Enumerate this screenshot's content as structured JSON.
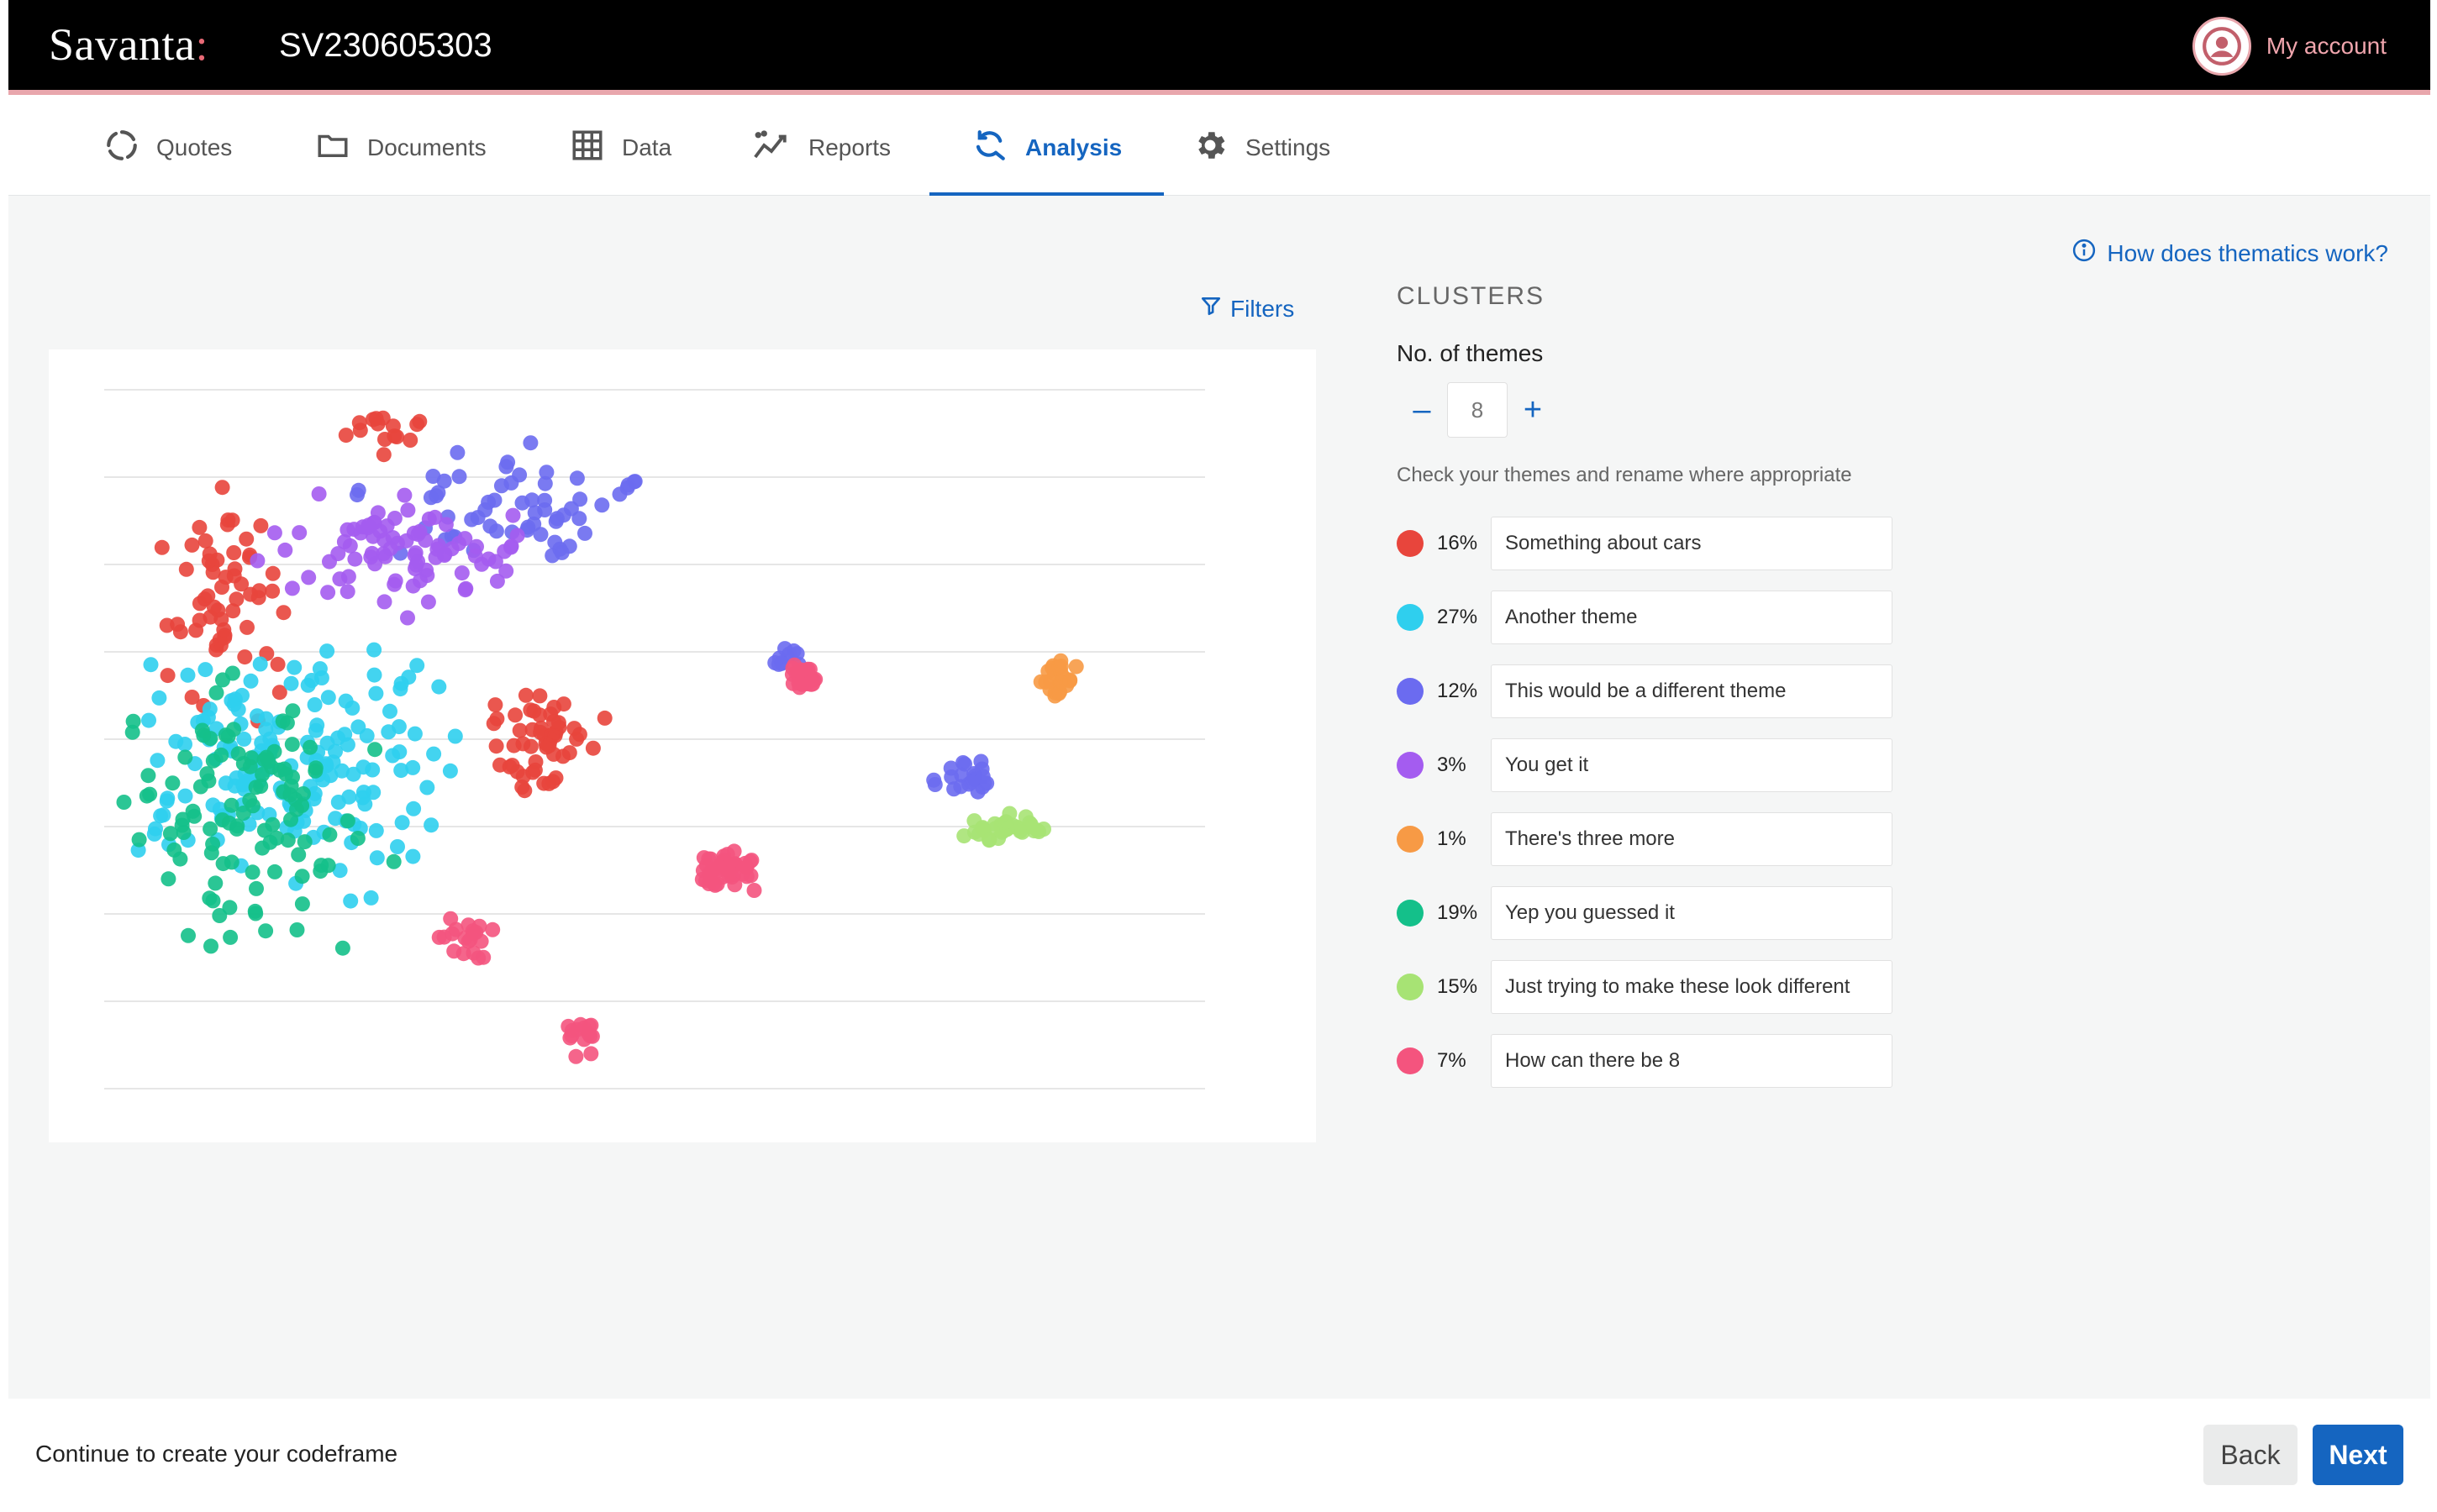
{
  "header": {
    "logo_text": "Savanta",
    "logo_mark": ":",
    "project_id": "SV230605303",
    "account_label": "My account"
  },
  "nav": {
    "tabs": [
      {
        "label": "Quotes",
        "icon": "loading-circle-icon"
      },
      {
        "label": "Documents",
        "icon": "folder-icon"
      },
      {
        "label": "Data",
        "icon": "table-grid-icon"
      },
      {
        "label": "Reports",
        "icon": "trend-chart-icon"
      },
      {
        "label": "Analysis",
        "icon": "refresh-search-icon",
        "active": true
      },
      {
        "label": "Settings",
        "icon": "gear-icon"
      }
    ]
  },
  "main": {
    "help_link": "How does thematics work?",
    "filters_label": "Filters",
    "clusters_title": "CLUSTERS",
    "themes_label": "No. of themes",
    "themes_count": "8",
    "hint": "Check your themes and rename where appropriate",
    "themes": [
      {
        "color": "#e8453c",
        "percent": "16%",
        "name": "Something about cars"
      },
      {
        "color": "#2fcfee",
        "percent": "27%",
        "name": "Another theme"
      },
      {
        "color": "#6b6bf0",
        "percent": "12%",
        "name": "This would be a different theme"
      },
      {
        "color": "#a45cf0",
        "percent": "3%",
        "name": "You get it"
      },
      {
        "color": "#f79a45",
        "percent": "1%",
        "name": "There's three more"
      },
      {
        "color": "#14c08a",
        "percent": "19%",
        "name": "Yep you guessed it"
      },
      {
        "color": "#a7e374",
        "percent": "15%",
        "name": "Just trying to make these look different"
      },
      {
        "color": "#f4547e",
        "percent": "7%",
        "name": "How can there be 8"
      }
    ]
  },
  "chart_data": {
    "type": "scatter",
    "title": "",
    "grid": "horizontal",
    "x": [],
    "y": []
  },
  "footer": {
    "text": "Continue to create your codeframe",
    "back_label": "Back",
    "next_label": "Next"
  }
}
